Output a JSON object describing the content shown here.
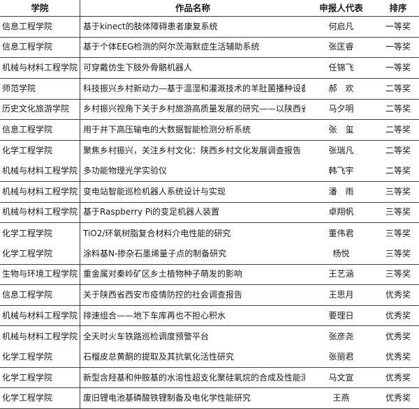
{
  "table": {
    "headers": {
      "college": "学院",
      "title": "作品名称",
      "applicant": "申报人代表",
      "rank": "排序"
    },
    "rows": [
      {
        "college": "信息工程学院",
        "title": "基于kinect的肢体障碍患者康复系统",
        "applicant": "何启凡",
        "award": "一等奖",
        "border_after": true
      },
      {
        "college": "信息工程学院",
        "title": "基于个体EEG检测的阿尔茨海默症生活辅助系统",
        "applicant": "张匡睿",
        "award": "一等奖",
        "border_after": true
      },
      {
        "college": "机械与材料工程学院",
        "title": "可穿戴仿生下肢外骨骼机器人",
        "applicant": "任锦飞",
        "award": "一等奖",
        "border_after": true
      },
      {
        "college": "师范学院",
        "title": "科技振兴乡村新动力—基于温湿和灌溉技术的羊肚菌播种设备",
        "applicant": "郝　欢",
        "award": "二等奖",
        "border_after": true
      },
      {
        "college": "历史文化旅游学院",
        "title": "乡村振兴视角下关于乡村旅游高质量发展的研究——以陕西省为例",
        "applicant": "马夕明",
        "award": "二等奖",
        "border_after": true
      },
      {
        "college": "信息工程学院",
        "title": "用于井下高压输电的大数据智能检测分析系统",
        "applicant": "张　玺",
        "award": "二等奖",
        "border_after": true
      },
      {
        "college": "化学工程学院",
        "title": "聚焦乡村振兴，关注乡村文化：陕西乡村文化发展调查报告",
        "applicant": "张瑞凡",
        "award": "二等奖",
        "border_after": false
      },
      {
        "college": "机械与材料工程学院",
        "title": "多功能物理光学实验仪",
        "applicant": "韩飞宇",
        "award": "二等奖",
        "border_after": true
      },
      {
        "college": "机械与材料工程学院",
        "title": "变电站智能巡检机器人系统设计与实现",
        "applicant": "潘　雨",
        "award": "三等奖",
        "border_after": true
      },
      {
        "college": "机械与材料工程学院",
        "title": "基于Raspberry Pi的变足机器人装置",
        "applicant": "卓翔帆",
        "award": "三等奖",
        "border_after": true
      },
      {
        "college": "化学工程学院",
        "title": "TiO2/环氧树脂复合材料介电性能的研究",
        "applicant": "董伟君",
        "award": "三等奖",
        "border_after": false
      },
      {
        "college": "化学工程学院",
        "title": "涂料基N-掺杂石墨烯量子点的制备研究",
        "applicant": "杨悦",
        "award": "三等奖",
        "border_after": true
      },
      {
        "college": "生物与环境工程学院",
        "title": "重金属对秦岭矿区乡土植物种子萌发的影响",
        "applicant": "王艺涵",
        "award": "三等奖",
        "border_after": true
      },
      {
        "college": "信息工程学院",
        "title": "关于陕西省西安市疫情防控的社会调查报告",
        "applicant": "王思月",
        "award": "优秀奖",
        "border_after": true
      },
      {
        "college": "机械与材料工程学院",
        "title": "排速组合——地下车库再也不担心积水",
        "applicant": "要理日",
        "award": "优秀奖",
        "border_after": true
      },
      {
        "college": "机械与材料工程学院",
        "title": "全天时火车铁路巡检调度预警平台",
        "applicant": "张彦尧",
        "award": "优秀奖",
        "border_after": false
      },
      {
        "college": "化学工程学院",
        "title": "石榴皮总黄酮的提取及其抗氧化活性研究",
        "applicant": "张丽君",
        "award": "优秀奖",
        "border_after": true
      },
      {
        "college": "化学工程学院",
        "title": "新型含羟基和仲胺基的水溶性超支化聚硅氧烷的合成及性能测试",
        "applicant": "马文宣",
        "award": "优秀奖",
        "border_after": true
      },
      {
        "college": "化学工程学院",
        "title": "废旧锂电池基磷酸铁锂制备及电化学性能研究",
        "applicant": "王燕",
        "award": "优秀奖",
        "border_after": true
      }
    ]
  },
  "colors": {
    "border": "#3f3f3f",
    "text": "#1a1a1a",
    "background": "#ffffff"
  }
}
